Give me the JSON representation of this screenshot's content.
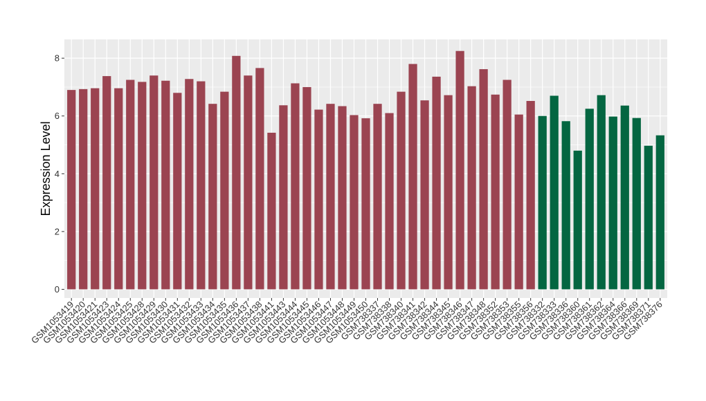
{
  "chart_data": {
    "type": "bar",
    "title": "",
    "xlabel": "",
    "ylabel": "Expression Level",
    "ylim": [
      -0.3,
      8.65
    ],
    "yticks": [
      0,
      2,
      4,
      6,
      8
    ],
    "grid": true,
    "panel_background": "#ebebeb",
    "series": [
      {
        "color": "#9b4451",
        "categories": [
          "GSM1053419",
          "GSM1053420",
          "GSM1053421",
          "GSM1053423",
          "GSM1053424",
          "GSM1053425",
          "GSM1053428",
          "GSM1053429",
          "GSM1053430",
          "GSM1053431",
          "GSM1053432",
          "GSM1053433",
          "GSM1053434",
          "GSM1053435",
          "GSM1053436",
          "GSM1053437",
          "GSM1053438",
          "GSM1053441",
          "GSM1053443",
          "GSM1053444",
          "GSM1053445",
          "GSM1053446",
          "GSM1053447",
          "GSM1053448",
          "GSM1053449",
          "GSM1053450",
          "GSM738337",
          "GSM738338",
          "GSM738340",
          "GSM738341",
          "GSM738342",
          "GSM738344",
          "GSM738345",
          "GSM738346",
          "GSM738347",
          "GSM738348",
          "GSM738352",
          "GSM738353",
          "GSM738355",
          "GSM738356"
        ],
        "values": [
          6.9,
          6.93,
          6.96,
          7.38,
          6.96,
          7.25,
          7.18,
          7.4,
          7.22,
          6.8,
          7.28,
          7.2,
          6.42,
          6.84,
          8.08,
          7.4,
          7.66,
          5.42,
          6.37,
          7.13,
          7.0,
          6.22,
          6.42,
          6.34,
          6.03,
          5.92,
          6.42,
          6.1,
          6.84,
          7.8,
          6.54,
          7.36,
          6.72,
          8.25,
          7.03,
          7.62,
          6.74,
          7.25,
          6.05,
          6.52
        ]
      },
      {
        "color": "#046641",
        "categories": [
          "GSM738332",
          "GSM738333",
          "GSM738336",
          "GSM738360",
          "GSM738361",
          "GSM738362",
          "GSM738364",
          "GSM738366",
          "GSM738369",
          "GSM738371",
          "GSM738376"
        ],
        "values": [
          6.0,
          6.7,
          5.82,
          4.8,
          6.25,
          6.72,
          5.98,
          6.36,
          5.93,
          4.97,
          5.33
        ]
      }
    ]
  }
}
